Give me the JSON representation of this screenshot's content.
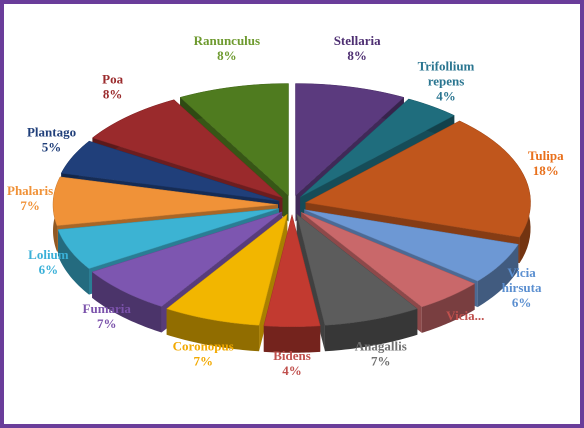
{
  "chart_data": {
    "type": "pie3d",
    "categories": [
      "Stellaria",
      "Trifollium repens",
      "Tulipa",
      "Vicia hirsuta",
      "Vicia...",
      "Anagallis",
      "Bidens",
      "Coronopus",
      "Fumaria",
      "Lolium",
      "Phalaris",
      "Plantago",
      "Poa",
      "Ranunculus"
    ],
    "values": [
      8,
      4,
      18,
      6,
      5,
      7,
      4,
      7,
      7,
      6,
      7,
      5,
      8,
      8
    ],
    "value_labels": [
      "8%",
      "4%",
      "18%",
      "6%",
      null,
      "7%",
      "4%",
      "7%",
      "7%",
      "6%",
      "7%",
      "5%",
      "8%",
      "8%"
    ],
    "colors": [
      "#5b3a7e",
      "#1f6d7d",
      "#c0561c",
      "#6d98d4",
      "#c9686a",
      "#5c5c5c",
      "#c23a30",
      "#f2b600",
      "#7d56b0",
      "#3cb3d3",
      "#f09238",
      "#203f7a",
      "#9a2a2c",
      "#4f7b1f"
    ],
    "label_colors": [
      "#4e2f72",
      "#2a7590",
      "#e8701c",
      "#5b8fd0",
      "#c0504d",
      "#707070",
      "#c0504d",
      "#f2a900",
      "#7b52ab",
      "#3ab0d8",
      "#f09238",
      "#203f7a",
      "#9a2a2c",
      "#6e9a2f"
    ]
  }
}
